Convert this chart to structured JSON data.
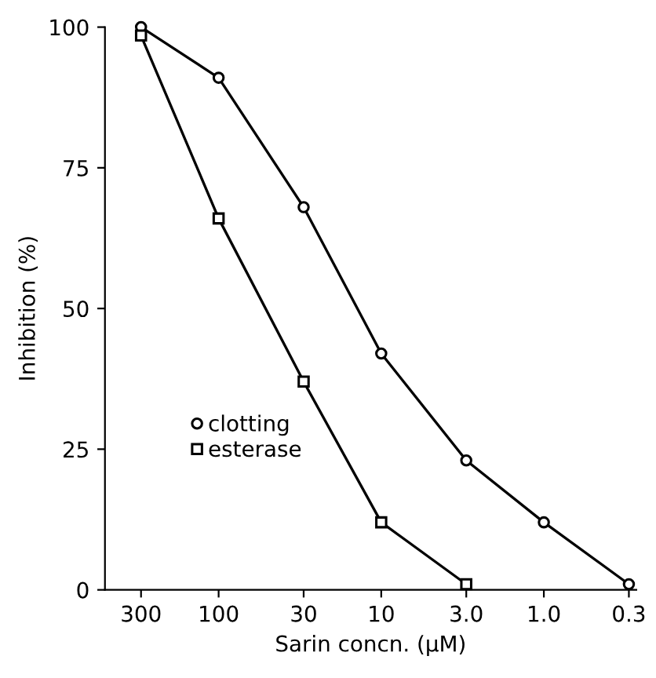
{
  "chart_data": {
    "type": "line",
    "xlabel": "Sarin concn. (µM)",
    "ylabel": "Inhibition (%)",
    "x": [
      300,
      100,
      30,
      10,
      3,
      1,
      0.3
    ],
    "series": [
      {
        "name": "clotting",
        "color": "#000000",
        "marker": "circle",
        "values": [
          100,
          91,
          68,
          42,
          23,
          12,
          1
        ]
      },
      {
        "name": "esterase",
        "color": "#000000",
        "marker": "square",
        "values": [
          98.5,
          66,
          37,
          12,
          1,
          null,
          null
        ]
      }
    ],
    "log": "x",
    "xlim": [
      500,
      0.27
    ],
    "xticks": [
      300,
      100,
      30,
      10,
      {
        "value": 3,
        "label": "3.0"
      },
      {
        "value": 1,
        "label": "1.0"
      },
      0.3
    ],
    "ylim": [
      0,
      100
    ],
    "yticks": [
      0,
      25,
      50,
      75,
      100
    ],
    "grid": false,
    "legend": "left",
    "line_style": "solid"
  }
}
